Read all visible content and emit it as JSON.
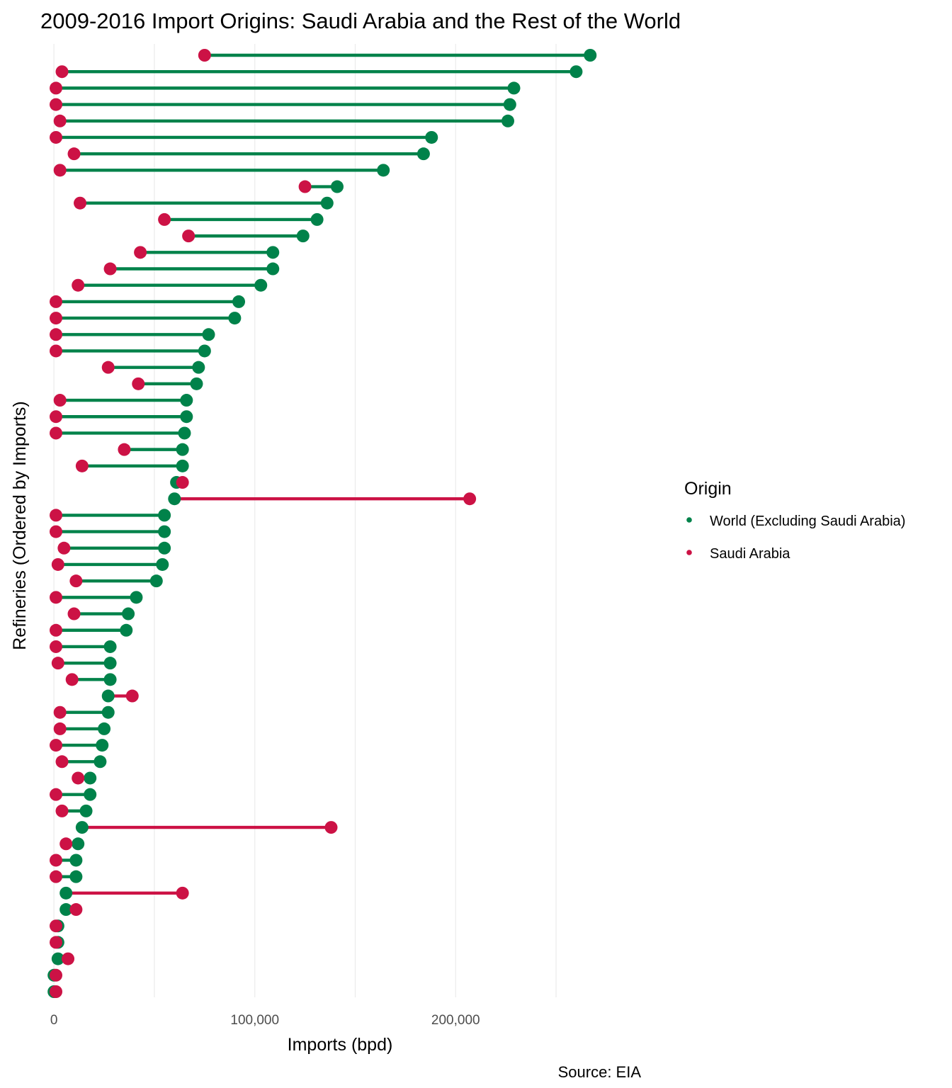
{
  "chart_data": {
    "type": "dumbbell",
    "title": "2009-2016 Import Origins: Saudi Arabia and the Rest of the World",
    "xlabel": "Imports (bpd)",
    "ylabel": "Refineries (Ordered by Imports)",
    "caption": "Source: EIA",
    "xlim": [
      -5000,
      305000
    ],
    "x_ticks": [
      0,
      100000,
      200000
    ],
    "x_tick_labels": [
      "0",
      "100,000",
      "200,000"
    ],
    "grid": true,
    "legend": {
      "title": "Origin",
      "position": "right",
      "entries": [
        {
          "label": "World (Excluding Saudi Arabia)",
          "color": "#00824a"
        },
        {
          "label": "Saudi Arabia",
          "color": "#cc1245"
        }
      ]
    },
    "colors": {
      "world": "#00824a",
      "saudi": "#cc1245"
    },
    "series": [
      {
        "name": "World (Excluding Saudi Arabia)",
        "values": [
          267000,
          260000,
          229000,
          227000,
          226000,
          188000,
          184000,
          164000,
          141000,
          136000,
          131000,
          124000,
          109000,
          109000,
          103000,
          92000,
          90000,
          77000,
          75000,
          72000,
          71000,
          66000,
          66000,
          65000,
          64000,
          64000,
          61000,
          60000,
          55000,
          55000,
          55000,
          54000,
          51000,
          41000,
          37000,
          36000,
          28000,
          28000,
          28000,
          27000,
          27000,
          25000,
          24000,
          23000,
          18000,
          18000,
          16000,
          14000,
          12000,
          11000,
          11000,
          6000,
          6000,
          2000,
          2000,
          2000,
          0,
          0
        ]
      },
      {
        "name": "Saudi Arabia",
        "values": [
          75000,
          4000,
          1000,
          1000,
          3000,
          1000,
          10000,
          3000,
          125000,
          13000,
          55000,
          67000,
          43000,
          28000,
          12000,
          1000,
          1000,
          1000,
          1000,
          27000,
          42000,
          3000,
          1000,
          1000,
          35000,
          14000,
          64000,
          207000,
          1000,
          1000,
          5000,
          2000,
          11000,
          1000,
          10000,
          1000,
          1000,
          2000,
          9000,
          39000,
          3000,
          3000,
          1000,
          4000,
          12000,
          1000,
          4000,
          138000,
          6000,
          1000,
          1000,
          64000,
          11000,
          1000,
          1000,
          7000,
          1000,
          1000
        ]
      }
    ]
  }
}
